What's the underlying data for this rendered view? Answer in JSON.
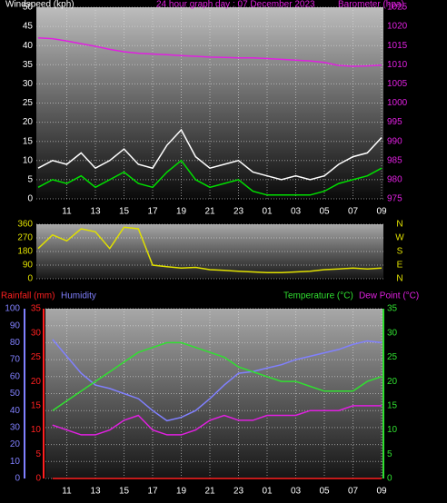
{
  "chart_data": [
    {
      "type": "line",
      "title": "24 hour graph day : 07 December 2023",
      "y_label": "Windspeed (kph)",
      "y2_label": "Barometer (hpa)",
      "xlim": [
        9,
        33
      ],
      "xticks": [
        11,
        13,
        15,
        17,
        19,
        21,
        23,
        {
          "value": 25,
          "label": "01"
        },
        {
          "value": 27,
          "label": "03"
        },
        {
          "value": 29,
          "label": "05"
        },
        {
          "value": 31,
          "label": "07"
        },
        {
          "value": 33,
          "label": "09"
        }
      ],
      "ylim": [
        0,
        50
      ],
      "yticks": [
        0,
        5,
        10,
        15,
        20,
        25,
        30,
        35,
        40,
        45,
        50
      ],
      "ytick_color": "#ffffff",
      "y2lim": [
        975,
        1025
      ],
      "y2ticks": [
        975,
        980,
        985,
        990,
        995,
        1000,
        1005,
        1010,
        1015,
        1020,
        1025
      ],
      "y2tick_color": "#e020e0",
      "grid": true,
      "x": [
        9,
        10,
        11,
        12,
        13,
        14,
        15,
        16,
        17,
        18,
        19,
        20,
        21,
        22,
        23,
        24,
        25,
        26,
        27,
        28,
        29,
        30,
        31,
        32,
        33
      ],
      "series": [
        {
          "color": "#ffffff",
          "values": [
            8,
            10,
            9,
            12,
            8,
            10,
            13,
            9,
            8,
            14,
            18,
            11,
            8,
            9,
            10,
            7,
            6,
            5,
            6,
            5,
            6,
            9,
            11,
            12,
            16
          ]
        },
        {
          "color": "#00e000",
          "values": [
            3,
            5,
            4,
            6,
            3,
            5,
            7,
            4,
            3,
            7,
            10,
            5,
            3,
            4,
            5,
            2,
            1,
            1,
            1,
            1,
            2,
            4,
            5,
            6,
            8
          ]
        },
        {
          "color": "#e020e0",
          "axis": "y2",
          "values": [
            1017,
            1016.8,
            1016.2,
            1015.5,
            1014.8,
            1014,
            1013.4,
            1013,
            1012.8,
            1012.6,
            1012.4,
            1012.2,
            1012,
            1011.9,
            1011.8,
            1011.8,
            1011.6,
            1011.4,
            1011.2,
            1011,
            1010.6,
            1009.8,
            1009.6,
            1009.7,
            1009.9
          ]
        }
      ]
    },
    {
      "type": "line",
      "xlim": [
        9,
        33
      ],
      "ylim": [
        0,
        360
      ],
      "yticks": [
        0,
        90,
        180,
        270,
        360
      ],
      "ytick_color": "#e0e000",
      "compass_labels": [
        "N",
        "E",
        "S",
        "W",
        "N"
      ],
      "compass_color": "#e0e000",
      "grid": true,
      "x": [
        9,
        10,
        11,
        12,
        13,
        14,
        15,
        16,
        17,
        18,
        19,
        20,
        21,
        22,
        23,
        24,
        25,
        26,
        27,
        28,
        29,
        30,
        31,
        32,
        33
      ],
      "series": [
        {
          "color": "#e0e000",
          "values": [
            200,
            290,
            250,
            330,
            310,
            200,
            340,
            330,
            90,
            80,
            70,
            75,
            60,
            55,
            50,
            45,
            40,
            40,
            45,
            50,
            60,
            65,
            70,
            65,
            70
          ]
        }
      ]
    },
    {
      "type": "line",
      "xlim": [
        9,
        33
      ],
      "xticks": [
        11,
        13,
        15,
        17,
        19,
        21,
        23,
        {
          "value": 25,
          "label": "01"
        },
        {
          "value": 27,
          "label": "03"
        },
        {
          "value": 29,
          "label": "05"
        },
        {
          "value": 31,
          "label": "07"
        },
        {
          "value": 33,
          "label": "09"
        }
      ],
      "ylim": [
        0,
        100
      ],
      "yticks": [
        0,
        10,
        20,
        30,
        40,
        50,
        60,
        70,
        80,
        90,
        100
      ],
      "ytick_color": "#8080ff",
      "y2lim": [
        0,
        35
      ],
      "y2ticks": [
        0,
        5,
        10,
        15,
        20,
        25,
        30,
        35
      ],
      "y2tick_color": "#30e030",
      "y3lim": [
        0,
        35
      ],
      "y3ticks": [
        0,
        5,
        10,
        15,
        20,
        25,
        30,
        35
      ],
      "y3tick_color": "#ff2020",
      "grid": true,
      "x": [
        10,
        11,
        12,
        13,
        14,
        15,
        16,
        17,
        18,
        19,
        20,
        21,
        22,
        23,
        24,
        25,
        26,
        27,
        28,
        29,
        30,
        31,
        32,
        33
      ],
      "series": [
        {
          "name": "Humidity",
          "color": "#8080ff",
          "axis": "y",
          "values": [
            82,
            72,
            62,
            55,
            53,
            50,
            47,
            40,
            34,
            36,
            40,
            47,
            55,
            62,
            63,
            65,
            67,
            70,
            72,
            74,
            76,
            79,
            81,
            80
          ]
        },
        {
          "name": "Temperature (°C)",
          "color": "#30e030",
          "axis": "y2",
          "values": [
            14,
            16,
            18,
            20,
            22,
            24,
            26,
            27,
            28,
            28,
            27,
            26,
            25,
            23,
            22,
            21,
            20,
            20,
            19,
            18,
            18,
            18,
            20,
            21
          ]
        },
        {
          "name": "Dew Point (°C)",
          "color": "#e020e0",
          "axis": "y2",
          "values": [
            11,
            10,
            9,
            9,
            10,
            12,
            13,
            10,
            9,
            9,
            10,
            12,
            13,
            12,
            12,
            13,
            13,
            13,
            14,
            14,
            14,
            15,
            15,
            15
          ]
        },
        {
          "name": "Rainfall (mm)",
          "color": "#ff2020",
          "axis": "y3",
          "values": [
            0,
            0,
            0,
            0,
            0,
            0,
            0,
            0,
            0,
            0,
            0,
            0,
            0,
            0,
            0,
            0,
            0,
            0,
            0,
            0,
            0,
            0,
            0,
            0
          ]
        }
      ]
    }
  ]
}
